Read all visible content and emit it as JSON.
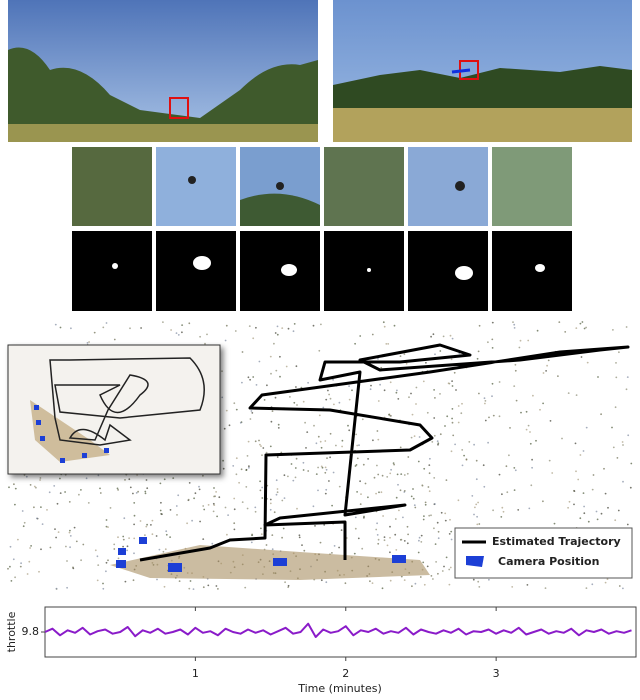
{
  "trajectory_legend": {
    "entries": [
      "Estimated Trajectory",
      "Camera Position"
    ]
  },
  "chart_data": {
    "type": "line",
    "xlabel": "Time (minutes)",
    "ylabel": "throttle",
    "color": "#8a1bc9",
    "x": [
      0,
      0.05,
      0.1,
      0.15,
      0.2,
      0.25,
      0.3,
      0.35,
      0.4,
      0.45,
      0.5,
      0.55,
      0.6,
      0.65,
      0.7,
      0.75,
      0.8,
      0.85,
      0.9,
      0.95,
      1,
      1.05,
      1.1,
      1.15,
      1.2,
      1.25,
      1.3,
      1.35,
      1.4,
      1.45,
      1.5,
      1.55,
      1.6,
      1.65,
      1.7,
      1.75,
      1.8,
      1.85,
      1.9,
      1.95,
      2,
      2.05,
      2.1,
      2.15,
      2.2,
      2.25,
      2.3,
      2.35,
      2.4,
      2.45,
      2.5,
      2.55,
      2.6,
      2.65,
      2.7,
      2.75,
      2.8,
      2.85,
      2.9,
      2.95,
      3,
      3.05,
      3.1,
      3.15,
      3.2,
      3.25,
      3.3,
      3.35,
      3.4,
      3.45,
      3.5,
      3.55,
      3.6,
      3.65,
      3.7,
      3.75,
      3.8,
      3.85,
      3.9
    ],
    "values": [
      9.8,
      9.84,
      9.76,
      9.82,
      9.79,
      9.85,
      9.77,
      9.81,
      9.83,
      9.78,
      9.8,
      9.86,
      9.75,
      9.82,
      9.79,
      9.84,
      9.78,
      9.8,
      9.83,
      9.77,
      9.85,
      9.79,
      9.81,
      9.76,
      9.84,
      9.8,
      9.78,
      9.83,
      9.79,
      9.82,
      9.77,
      9.81,
      9.85,
      9.78,
      9.8,
      9.9,
      9.74,
      9.83,
      9.79,
      9.81,
      9.87,
      9.76,
      9.82,
      9.8,
      9.84,
      9.78,
      9.81,
      9.79,
      9.85,
      9.77,
      9.83,
      9.8,
      9.78,
      9.82,
      9.79,
      9.84,
      9.77,
      9.81,
      9.8,
      9.83,
      9.78,
      9.82,
      9.79,
      9.85,
      9.77,
      9.8,
      9.83,
      9.78,
      9.81,
      9.79,
      9.84,
      9.76,
      9.82,
      9.8,
      9.83,
      9.78,
      9.81,
      9.79,
      9.82
    ],
    "xlim": [
      0,
      3.93
    ],
    "ylim": [
      9.5,
      10.1
    ],
    "xticks": [
      1,
      2,
      3
    ],
    "yticks": [
      9.8
    ]
  }
}
